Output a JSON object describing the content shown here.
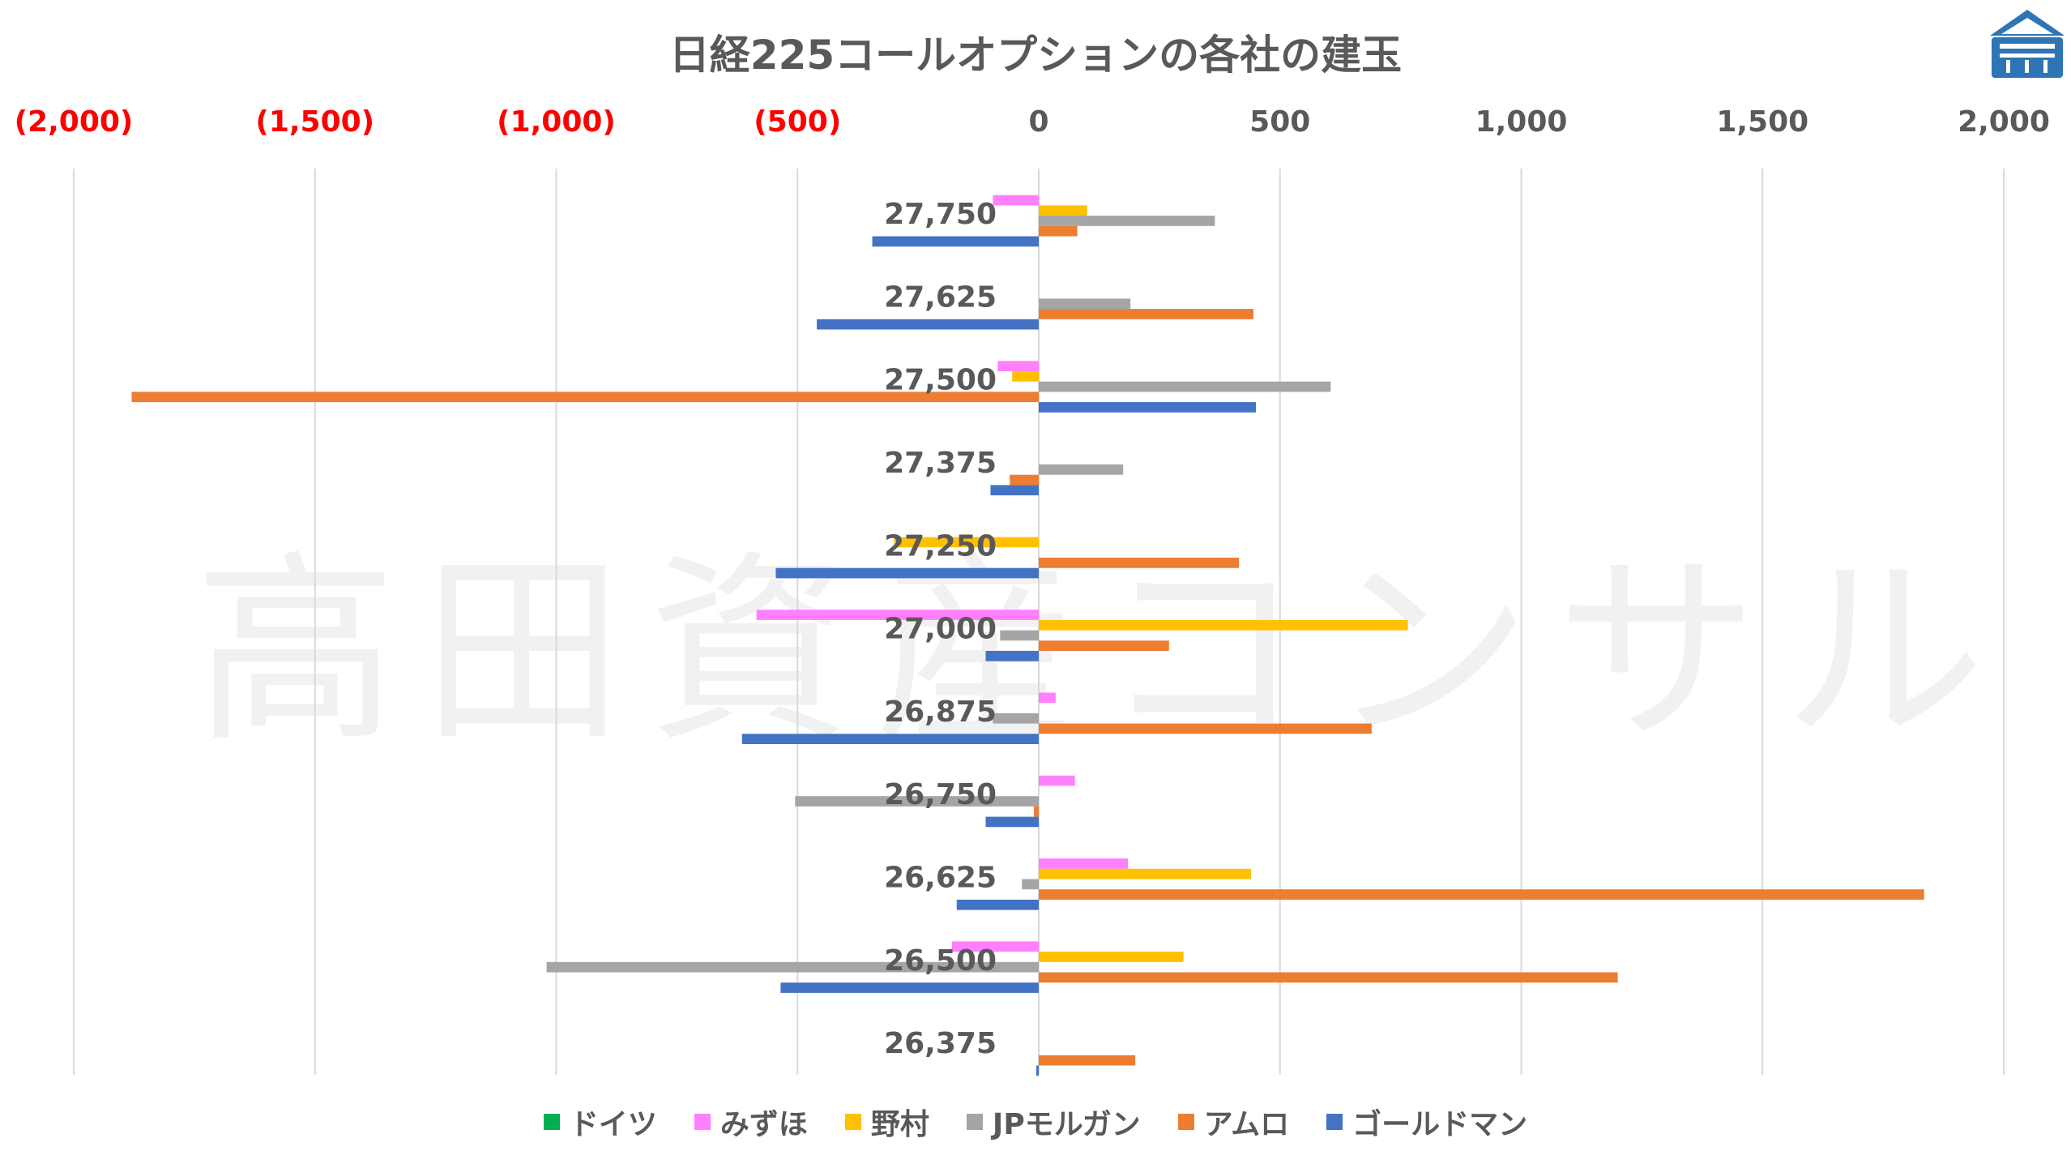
{
  "chart_data": {
    "type": "bar",
    "orientation": "horizontal",
    "title": "日経225コールオプションの各社の建玉",
    "watermark": "高田資産コンサル",
    "categories": [
      "27,750",
      "27,625",
      "27,500",
      "27,375",
      "27,250",
      "27,000",
      "26,875",
      "26,750",
      "26,625",
      "26,500",
      "26,375"
    ],
    "x_ticks": [
      "(2,000)",
      "(1,500)",
      "(1,000)",
      "(500)",
      "0",
      "500",
      "1,000",
      "1,500",
      "2,000"
    ],
    "xlim": [
      -2000,
      2000
    ],
    "grid": true,
    "legend_position": "bottom",
    "series": [
      {
        "name": "ドイツ",
        "color": "#00B050",
        "values": [
          0,
          0,
          0,
          0,
          0,
          0,
          0,
          0,
          0,
          0,
          0
        ]
      },
      {
        "name": "みずほ",
        "color": "#FF80FF",
        "values": [
          -95,
          0,
          -85,
          0,
          0,
          -585,
          35,
          75,
          185,
          -180,
          0
        ]
      },
      {
        "name": "野村",
        "color": "#FFC000",
        "values": [
          100,
          0,
          -55,
          0,
          -300,
          765,
          0,
          0,
          440,
          300,
          0
        ]
      },
      {
        "name": "JPモルガン",
        "color": "#A5A5A5",
        "values": [
          365,
          190,
          605,
          175,
          0,
          -80,
          -95,
          -505,
          -35,
          -1020,
          0
        ]
      },
      {
        "name": "アムロ",
        "color": "#ED7D31",
        "values": [
          80,
          445,
          -1880,
          -60,
          415,
          270,
          690,
          -10,
          1835,
          1200,
          200
        ]
      },
      {
        "name": "ゴールドマン",
        "color": "#4472C4",
        "values": [
          -345,
          -460,
          450,
          -100,
          -545,
          -110,
          -615,
          -110,
          -170,
          -535,
          -5
        ]
      }
    ]
  },
  "logo": {
    "name": "takada-logo",
    "color": "#2E75B6"
  }
}
